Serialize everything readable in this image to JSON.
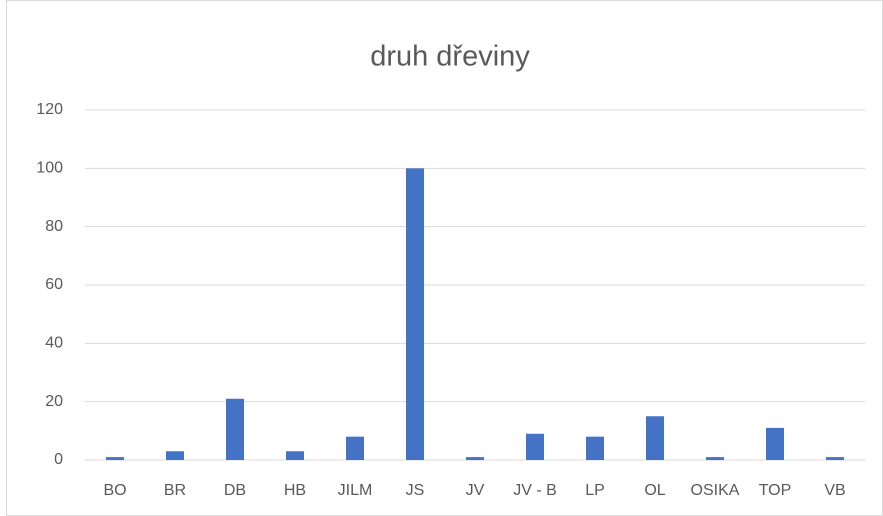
{
  "chart_data": {
    "type": "bar",
    "title": "druh dřeviny",
    "categories": [
      "BO",
      "BR",
      "DB",
      "HB",
      "JILM",
      "JS",
      "JV",
      "JV - B",
      "LP",
      "OL",
      "OSIKA",
      "TOP",
      "VB"
    ],
    "values": [
      1,
      3,
      21,
      3,
      8,
      100,
      1,
      9,
      8,
      15,
      1,
      11,
      1
    ],
    "color": "#4472c4",
    "ylim": [
      0,
      120
    ],
    "yticks": [
      0,
      20,
      40,
      60,
      80,
      100,
      120
    ],
    "grid": true
  }
}
